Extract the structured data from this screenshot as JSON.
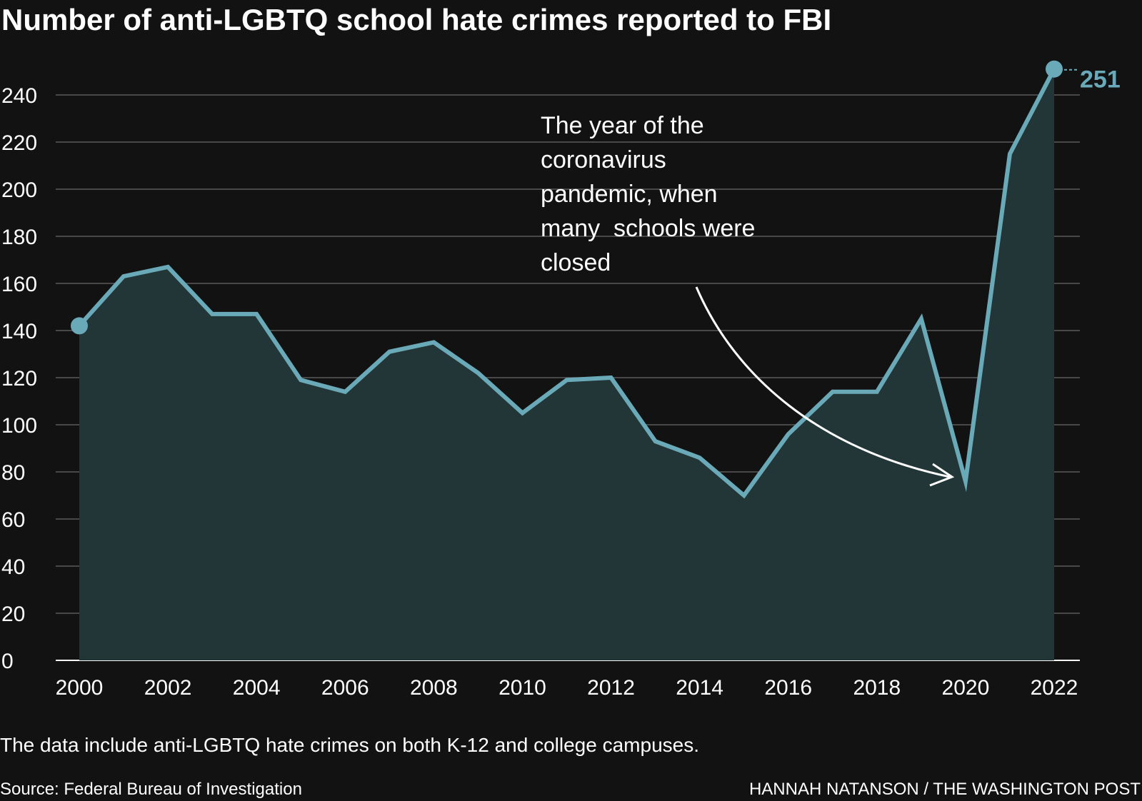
{
  "colors": {
    "background": "#121212",
    "line": "#6aaab8",
    "area": "#223638",
    "grid": "#5a5a5a",
    "text": "#ffffff"
  },
  "chart_data": {
    "type": "area",
    "title": "Number of anti-LGBTQ school hate crimes reported to FBI",
    "xlabel": "",
    "ylabel": "",
    "x": [
      2000,
      2001,
      2002,
      2003,
      2004,
      2005,
      2006,
      2007,
      2008,
      2009,
      2010,
      2011,
      2012,
      2013,
      2014,
      2015,
      2016,
      2017,
      2018,
      2019,
      2020,
      2021,
      2022
    ],
    "values": [
      142,
      163,
      167,
      147,
      147,
      119,
      114,
      131,
      135,
      122,
      105,
      119,
      120,
      93,
      86,
      70,
      96,
      114,
      114,
      145,
      76,
      215,
      251
    ],
    "ylim": [
      0,
      251
    ],
    "y_ticks": [
      0,
      20,
      40,
      60,
      80,
      100,
      120,
      140,
      160,
      180,
      200,
      220,
      240
    ],
    "x_ticks": [
      "2000",
      "2002",
      "2004",
      "2006",
      "2008",
      "2010",
      "2012",
      "2014",
      "2016",
      "2018",
      "2020",
      "2022"
    ],
    "grid": true,
    "end_label": "251",
    "annotation": {
      "lines": [
        "The year of the",
        "coronavirus",
        "pandemic, when",
        "many  schools were",
        "closed"
      ],
      "points_to": 2020
    }
  },
  "footer": {
    "note": "The data include anti-LGBTQ hate crimes on both K-12 and college campuses.",
    "source": "Source: Federal Bureau of Investigation",
    "credit": "HANNAH NATANSON / THE WASHINGTON POST"
  }
}
